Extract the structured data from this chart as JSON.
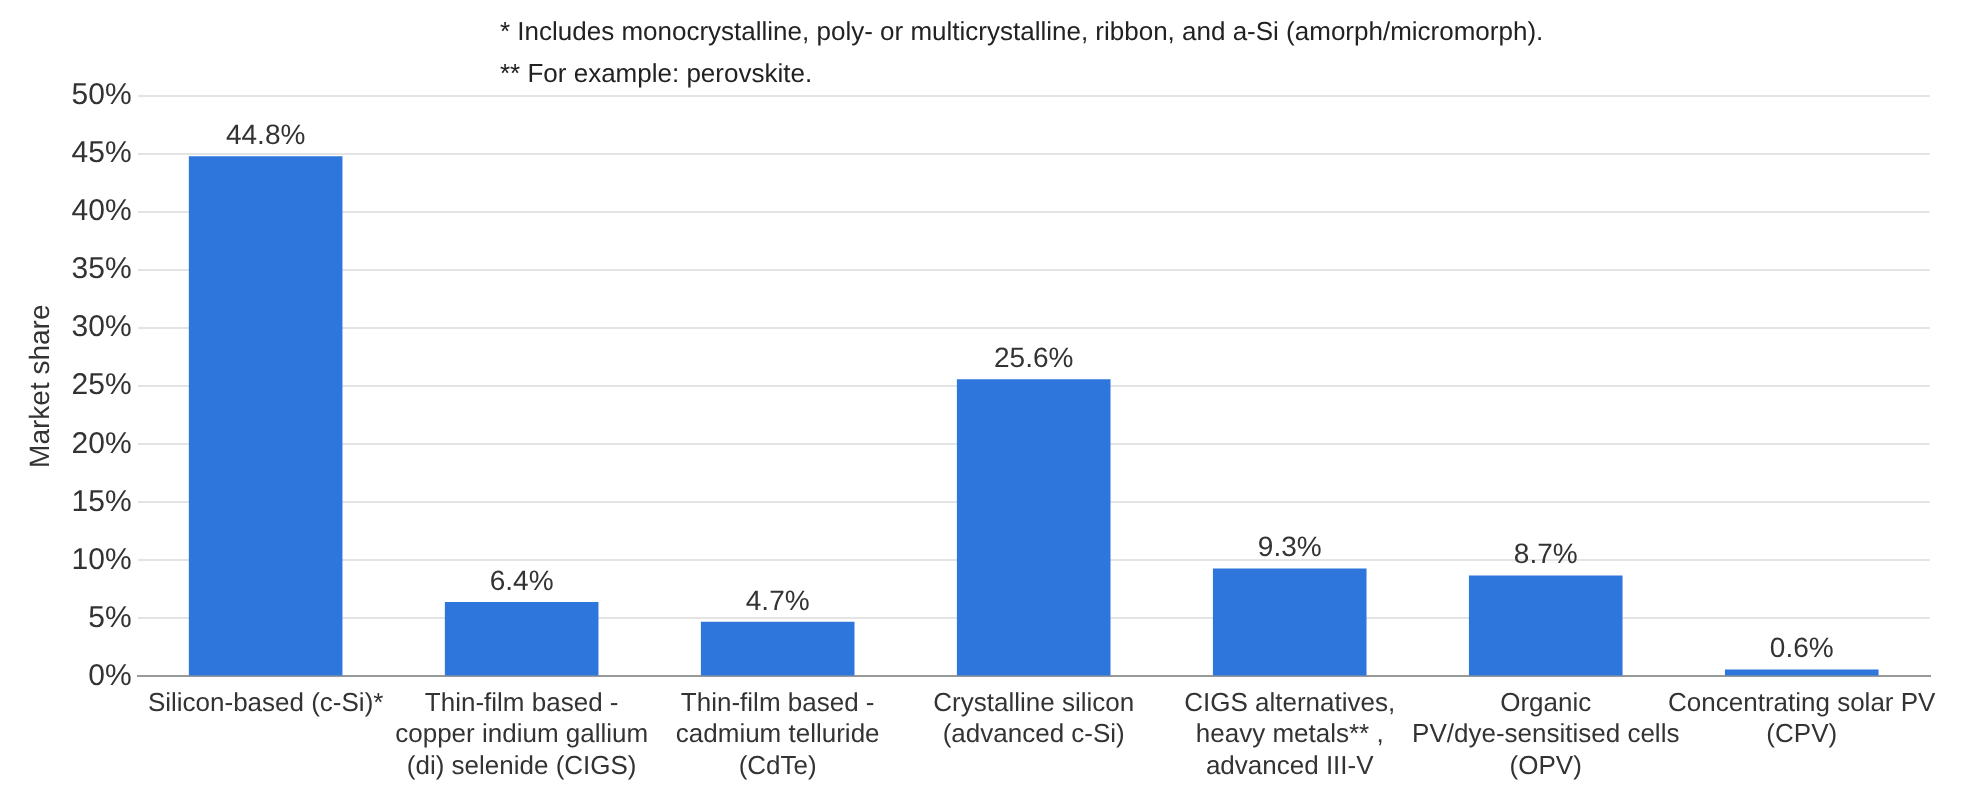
{
  "chart_data": {
    "type": "bar",
    "ylabel": "Market share",
    "annotations": [
      "* Includes monocrystalline, poly- or multicrystalline, ribbon, and a-Si (amorph/micromorph).",
      "** For example: perovskite."
    ],
    "categories": [
      "Silicon-based (c-Si)*",
      "Thin-film based - copper indium gallium (di) selenide (CIGS)",
      "Thin-film based - cadmium telluride (CdTe)",
      "Crystalline silicon (advanced c-Si)",
      "CIGS alternatives, heavy metals** , advanced III-V",
      "Organic PV/dye-sensitised cells (OPV)",
      "Concentrating solar PV (CPV)"
    ],
    "values": [
      44.8,
      6.4,
      4.7,
      25.6,
      9.3,
      8.7,
      0.6
    ],
    "value_labels": [
      "44.8%",
      "6.4%",
      "4.7%",
      "25.6%",
      "9.3%",
      "8.7%",
      "0.6%"
    ],
    "color": "#2e75dc",
    "ylim": [
      0,
      50
    ],
    "yticks": [
      {
        "value": 0,
        "label": "0%"
      },
      {
        "value": 5,
        "label": "5%"
      },
      {
        "value": 10,
        "label": "10%"
      },
      {
        "value": 15,
        "label": "15%"
      },
      {
        "value": 20,
        "label": "20%"
      },
      {
        "value": 25,
        "label": "25%"
      },
      {
        "value": 30,
        "label": "30%"
      },
      {
        "value": 35,
        "label": "35%"
      },
      {
        "value": 40,
        "label": "40%"
      },
      {
        "value": 45,
        "label": "45%"
      },
      {
        "value": 50,
        "label": "50%"
      }
    ],
    "grid": "y",
    "legend": false
  }
}
